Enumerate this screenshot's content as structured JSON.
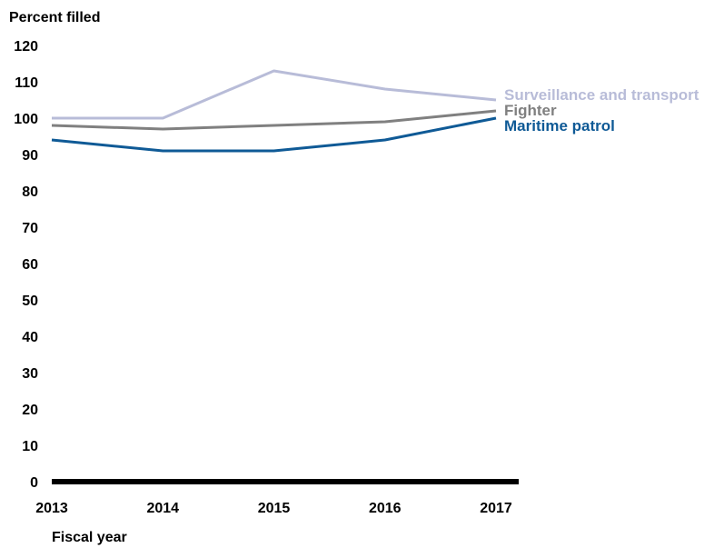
{
  "chart_data": {
    "type": "line",
    "title": "",
    "ylabel": "Percent filled",
    "xlabel": "Fiscal year",
    "x": [
      "2013",
      "2014",
      "2015",
      "2016",
      "2017"
    ],
    "yticks": [
      0,
      10,
      20,
      30,
      40,
      50,
      60,
      70,
      80,
      90,
      100,
      110,
      120
    ],
    "ylim": [
      0,
      120
    ],
    "grid": false,
    "legend": "direct-labels-right",
    "series": [
      {
        "name": "Surveillance and transport",
        "color": "#b8bcd8",
        "values": [
          100,
          100,
          113,
          108,
          105
        ]
      },
      {
        "name": "Fighter",
        "color": "#808080",
        "values": [
          98,
          97,
          98,
          99,
          102
        ]
      },
      {
        "name": "Maritime patrol",
        "color": "#0f5a96",
        "values": [
          94,
          91,
          91,
          94,
          100
        ]
      }
    ]
  }
}
